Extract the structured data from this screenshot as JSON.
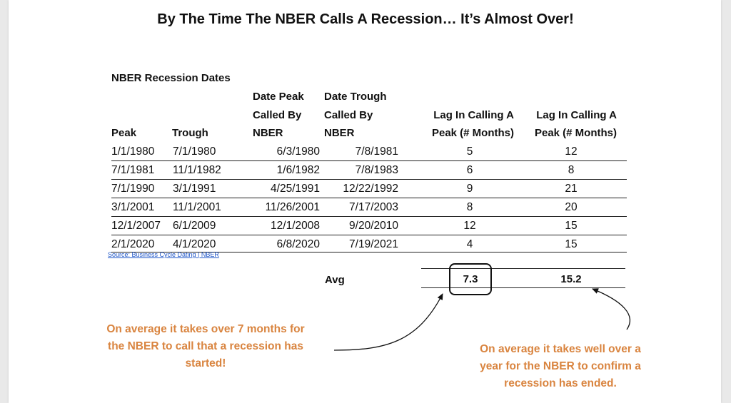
{
  "title": "By The Time The NBER Calls A Recession… It’s Almost Over!",
  "section_title": "NBER Recession Dates",
  "headers": {
    "peak": "Peak",
    "trough": "Trough",
    "peak_called": [
      "Date Peak",
      "Called By",
      "NBER"
    ],
    "trough_called": [
      "Date Trough",
      "Called By",
      "NBER"
    ],
    "lag_peak": [
      "Lag In Calling A",
      "Peak (# Months)"
    ],
    "lag_trough": [
      "Lag In Calling A",
      "Peak (# Months)"
    ]
  },
  "rows": [
    [
      "1/1/1980",
      "7/1/1980",
      "6/3/1980",
      "7/8/1981",
      "5",
      "12"
    ],
    [
      "7/1/1981",
      "11/1/1982",
      "1/6/1982",
      "7/8/1983",
      "6",
      "8"
    ],
    [
      "7/1/1990",
      "3/1/1991",
      "4/25/1991",
      "12/22/1992",
      "9",
      "21"
    ],
    [
      "3/1/2001",
      "11/1/2001",
      "11/26/2001",
      "7/17/2003",
      "8",
      "20"
    ],
    [
      "12/1/2007",
      "6/1/2009",
      "12/1/2008",
      "9/20/2010",
      "12",
      "15"
    ],
    [
      "2/1/2020",
      "4/1/2020",
      "6/8/2020",
      "7/19/2021",
      "4",
      "15"
    ]
  ],
  "source": "Source: Business Cycle Dating | NBER",
  "avg": {
    "label": "Avg",
    "peak_lag": "7.3",
    "trough_lag": "15.2"
  },
  "notes": {
    "left": [
      "On average it takes over 7 months for",
      "the NBER to call that a recession has",
      "started!"
    ],
    "right": [
      "On average it takes well over a",
      "year for the NBER to confirm a",
      "recession has ended."
    ]
  },
  "colors": {
    "note": "#d9843f",
    "source_link": "#1f56c8",
    "text": "#111111"
  }
}
